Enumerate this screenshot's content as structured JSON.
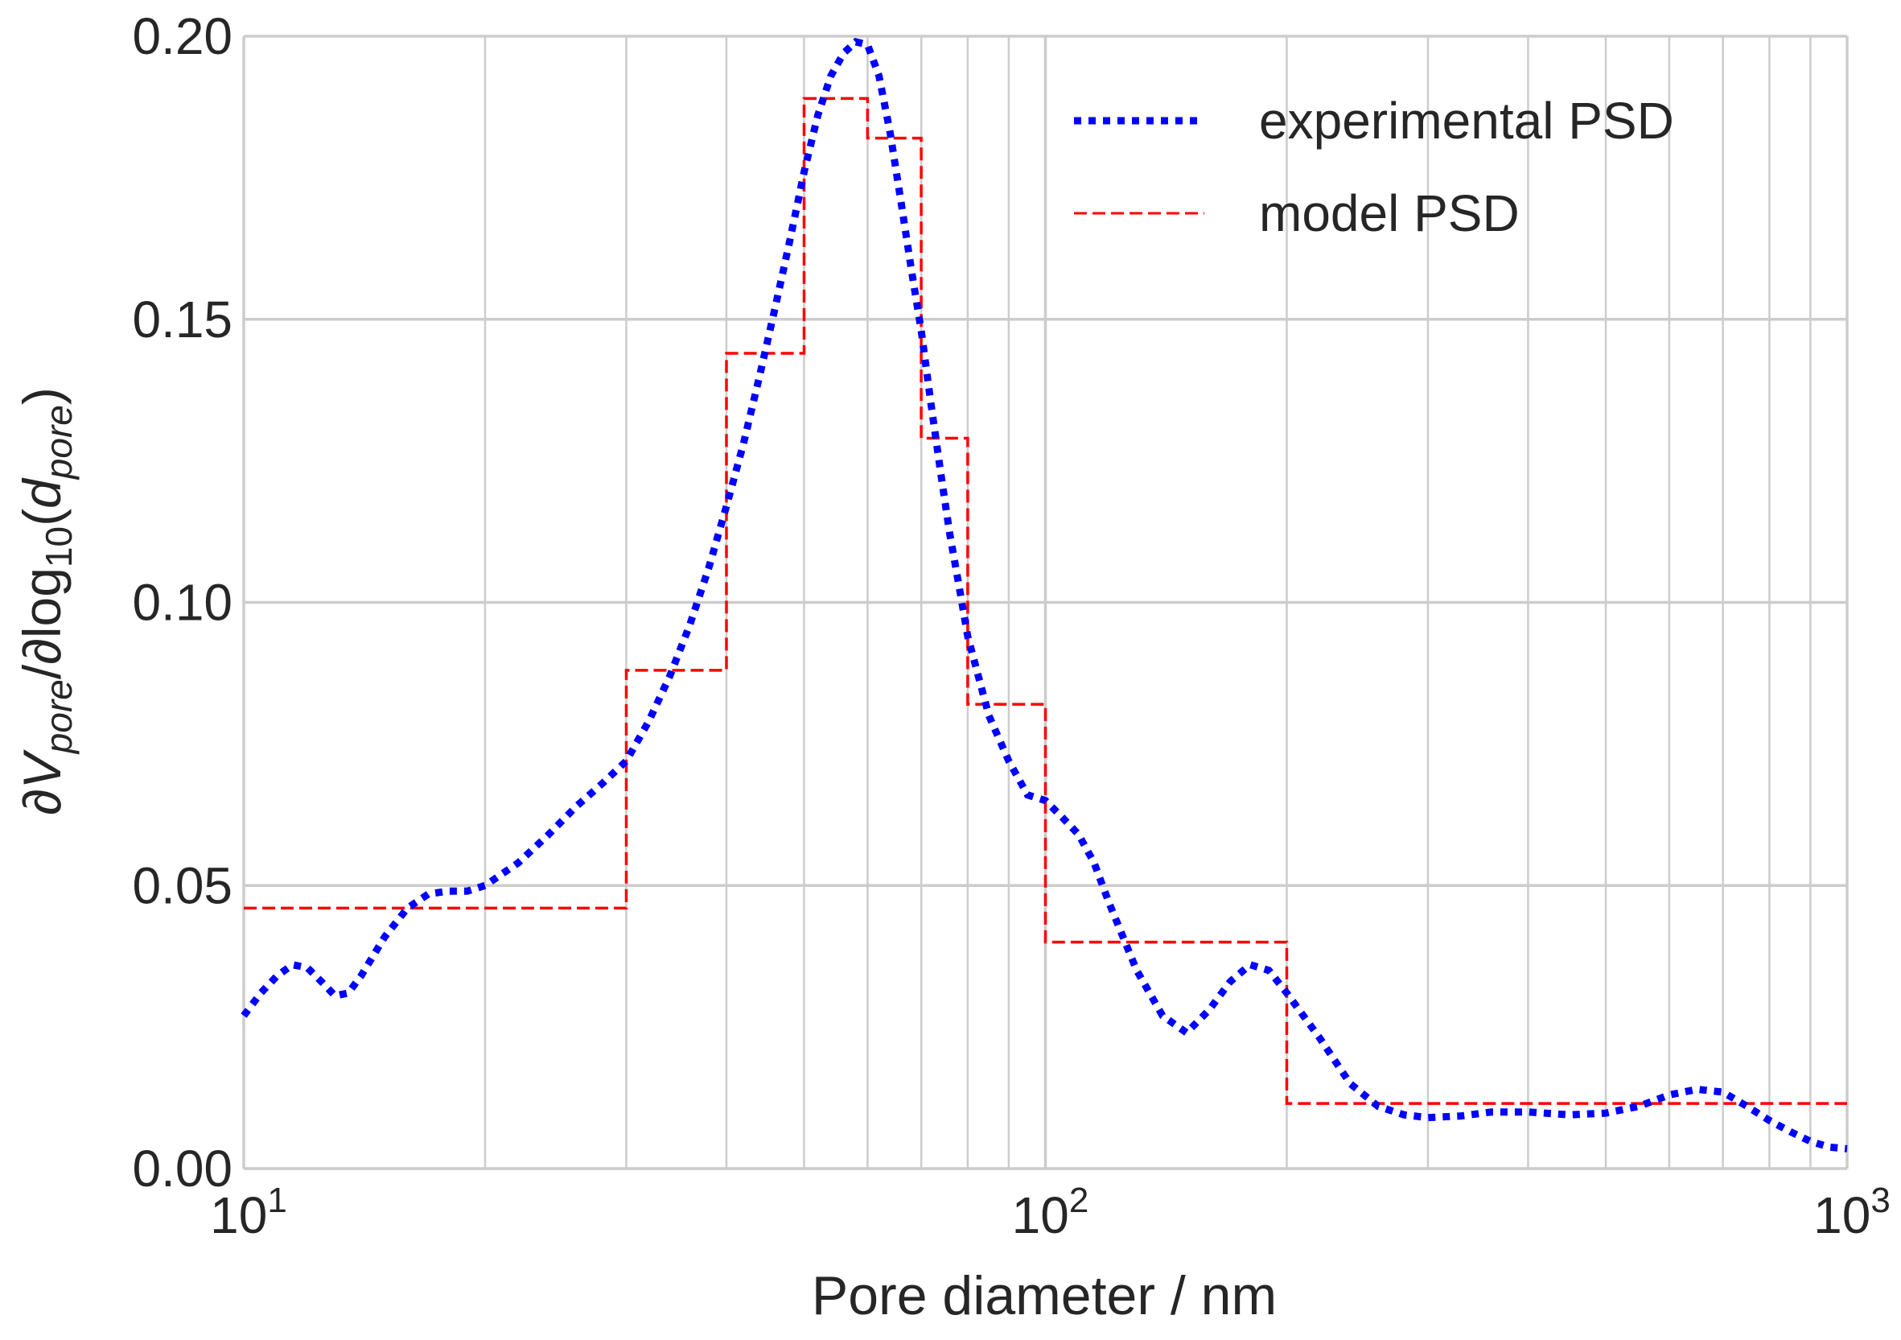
{
  "chart_data": {
    "type": "line",
    "xscale": "log",
    "xlim": [
      10,
      1000
    ],
    "ylim": [
      0,
      0.2
    ],
    "xlabel": "Pore diameter / nm",
    "ylabel": "∂V_pore/∂log10(d_pore)",
    "ylabel_parts": {
      "partial1": "∂",
      "v": "V",
      "pore_sub1": "pore",
      "mid": "/∂log",
      "ten_sub": "10",
      "open": "(",
      "d": "d",
      "pore_sub2": "pore",
      "close": ")"
    },
    "grid": true,
    "legend_position": "top-right",
    "x_major_ticks": [
      {
        "value": 10,
        "base": "10",
        "exp": "1"
      },
      {
        "value": 100,
        "base": "10",
        "exp": "2"
      },
      {
        "value": 1000,
        "base": "10",
        "exp": "3"
      }
    ],
    "x_minor_ticks": [
      20,
      30,
      40,
      50,
      60,
      70,
      80,
      90,
      200,
      300,
      400,
      500,
      600,
      700,
      800,
      900
    ],
    "y_ticks": [
      {
        "value": 0.0,
        "label": "0.00"
      },
      {
        "value": 0.05,
        "label": "0.05"
      },
      {
        "value": 0.1,
        "label": "0.10"
      },
      {
        "value": 0.15,
        "label": "0.15"
      },
      {
        "value": 0.2,
        "label": "0.20"
      }
    ],
    "series": [
      {
        "name": "experimental PSD",
        "color": "#0000ff",
        "style": "dotted",
        "x": [
          10,
          10.5,
          11,
          11.5,
          12,
          12.5,
          13,
          13.5,
          14,
          15,
          16,
          17,
          18,
          19,
          20,
          22,
          24,
          26,
          28,
          30,
          32,
          34,
          36,
          38,
          40,
          42,
          44,
          46,
          48,
          50,
          52,
          54,
          56,
          58,
          60,
          62,
          64,
          66,
          68,
          70,
          72,
          74,
          76,
          78,
          80,
          85,
          90,
          95,
          100,
          105,
          110,
          115,
          120,
          130,
          140,
          150,
          160,
          170,
          180,
          190,
          200,
          220,
          240,
          260,
          280,
          300,
          330,
          360,
          400,
          450,
          500,
          550,
          600,
          650,
          700,
          750,
          800,
          850,
          900,
          950,
          1000
        ],
        "values": [
          0.027,
          0.031,
          0.034,
          0.036,
          0.0355,
          0.033,
          0.0305,
          0.031,
          0.034,
          0.041,
          0.046,
          0.0485,
          0.049,
          0.049,
          0.05,
          0.054,
          0.059,
          0.064,
          0.068,
          0.072,
          0.079,
          0.087,
          0.096,
          0.106,
          0.117,
          0.128,
          0.14,
          0.152,
          0.164,
          0.176,
          0.186,
          0.193,
          0.197,
          0.199,
          0.1985,
          0.193,
          0.183,
          0.171,
          0.159,
          0.148,
          0.135,
          0.123,
          0.112,
          0.103,
          0.094,
          0.08,
          0.072,
          0.066,
          0.065,
          0.062,
          0.059,
          0.054,
          0.047,
          0.035,
          0.027,
          0.024,
          0.028,
          0.033,
          0.036,
          0.035,
          0.031,
          0.023,
          0.015,
          0.011,
          0.0095,
          0.009,
          0.0093,
          0.01,
          0.01,
          0.0095,
          0.0098,
          0.011,
          0.013,
          0.014,
          0.0135,
          0.011,
          0.0085,
          0.0065,
          0.0048,
          0.0038,
          0.0035
        ]
      },
      {
        "name": "model PSD",
        "color": "#ff0000",
        "style": "dashed-step",
        "bin_edges": [
          10,
          30,
          40,
          50,
          60,
          70,
          80,
          100,
          200,
          1000
        ],
        "values": [
          0.046,
          0.088,
          0.144,
          0.189,
          0.182,
          0.129,
          0.082,
          0.04,
          0.0115
        ]
      }
    ]
  }
}
